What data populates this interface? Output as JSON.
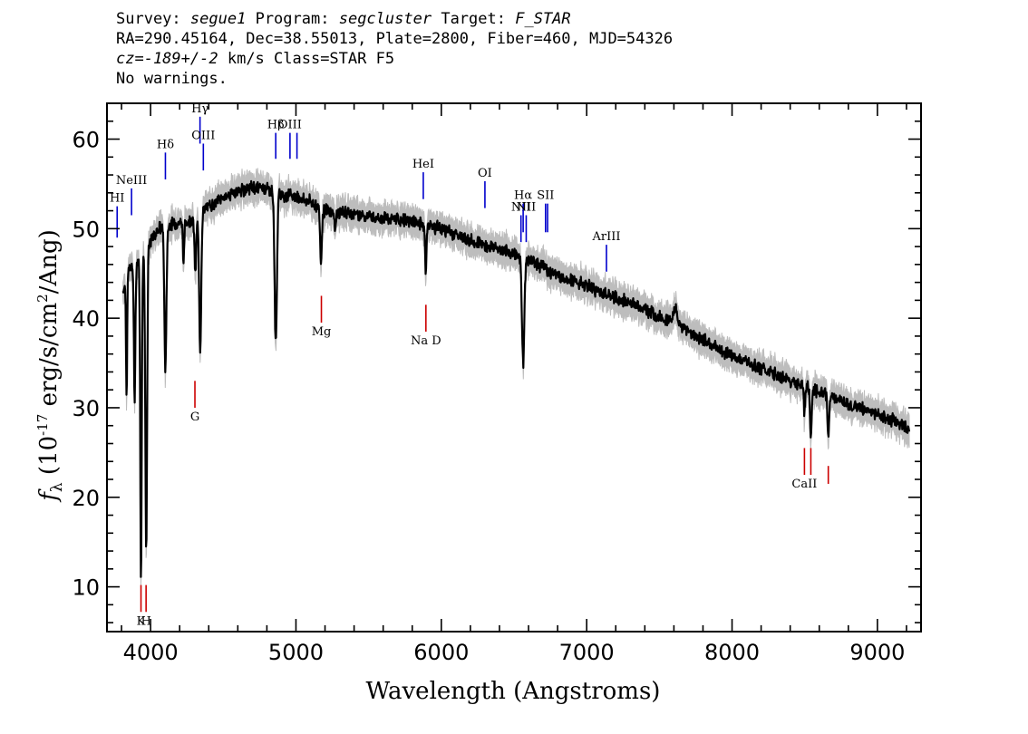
{
  "header": {
    "survey_label": "Survey:",
    "survey": "segue1",
    "program_label": "Program:",
    "program": "segcluster",
    "target_label": "Target:",
    "target": "F_STAR",
    "line2": "RA=290.45164, Dec=38.55013, Plate=2800, Fiber=460, MJD=54326",
    "cz": "cz=-189+/-2",
    "line3_rest": "km/s Class=STAR F5",
    "line4": "No warnings."
  },
  "chart_data": {
    "type": "line",
    "xlabel": "Wavelength (Angstroms)",
    "ylabel": "f_λ (10^-17 erg/s/cm^2/Ang)",
    "xlim": [
      3700,
      9300
    ],
    "ylim": [
      5,
      64
    ],
    "x_ticks": [
      4000,
      5000,
      6000,
      7000,
      8000,
      9000
    ],
    "y_ticks": [
      10,
      20,
      30,
      40,
      50,
      60
    ],
    "grid": false,
    "colors": {
      "flux": "#000000",
      "error": "#bdbdbd",
      "emission": "#0000cc",
      "absorption": "#cc0000"
    },
    "continuum": [
      [
        3810,
        43
      ],
      [
        3850,
        45.5
      ],
      [
        3900,
        46
      ],
      [
        3950,
        47
      ],
      [
        4000,
        48.5
      ],
      [
        4050,
        50
      ],
      [
        4150,
        50.5
      ],
      [
        4300,
        51
      ],
      [
        4400,
        52.5
      ],
      [
        4500,
        53.5
      ],
      [
        4600,
        54.2
      ],
      [
        4700,
        54.6
      ],
      [
        4800,
        54.5
      ],
      [
        4900,
        53.8
      ],
      [
        5000,
        53.6
      ],
      [
        5100,
        53
      ],
      [
        5200,
        52
      ],
      [
        5400,
        51.7
      ],
      [
        5600,
        51.2
      ],
      [
        5800,
        50.8
      ],
      [
        6000,
        50
      ],
      [
        6200,
        48.7
      ],
      [
        6400,
        47.7
      ],
      [
        6600,
        46.6
      ],
      [
        6800,
        44.8
      ],
      [
        7000,
        43.6
      ],
      [
        7200,
        42.3
      ],
      [
        7400,
        41
      ],
      [
        7600,
        39.5
      ],
      [
        7800,
        37.6
      ],
      [
        8000,
        35.8
      ],
      [
        8200,
        34.4
      ],
      [
        8400,
        33
      ],
      [
        8600,
        31.8
      ],
      [
        8800,
        30.4
      ],
      [
        9000,
        29.3
      ],
      [
        9100,
        28.6
      ],
      [
        9220,
        27.6
      ]
    ],
    "absorption_features": [
      {
        "x": 3835,
        "depth": 13,
        "width": 4
      },
      {
        "x": 3890,
        "depth": 15,
        "width": 5
      },
      {
        "x": 3934,
        "depth": 36,
        "width": 5
      },
      {
        "x": 3970,
        "depth": 34,
        "width": 6
      },
      {
        "x": 4102,
        "depth": 16,
        "width": 7
      },
      {
        "x": 4227,
        "depth": 5,
        "width": 4
      },
      {
        "x": 4308,
        "depth": 6,
        "width": 6
      },
      {
        "x": 4341,
        "depth": 15,
        "width": 7
      },
      {
        "x": 4861,
        "depth": 17,
        "width": 8
      },
      {
        "x": 5172,
        "depth": 6,
        "width": 6
      },
      {
        "x": 5270,
        "depth": 2,
        "width": 5
      },
      {
        "x": 5893,
        "depth": 5,
        "width": 5
      },
      {
        "x": 6563,
        "depth": 12,
        "width": 8
      },
      {
        "x": 8498,
        "depth": 3,
        "width": 5
      },
      {
        "x": 8542,
        "depth": 5.5,
        "width": 5
      },
      {
        "x": 8662,
        "depth": 5,
        "width": 5
      }
    ],
    "emission_features": [
      {
        "x": 7610,
        "height": 1.8,
        "width": 12
      }
    ],
    "emission_lines": [
      {
        "label": "HI",
        "x": 3770,
        "y_top": 52.5,
        "y_bot": 49
      },
      {
        "label": "NeIII",
        "x": 3869,
        "y_top": 54.5,
        "y_bot": 51.5
      },
      {
        "label": "Hδ",
        "x": 4102,
        "y_top": 58.5,
        "y_bot": 55.5
      },
      {
        "label": "Hγ",
        "x": 4340,
        "y_top": 62.5,
        "y_bot": 59.5
      },
      {
        "label": "OIII",
        "x": 4363,
        "y_top": 59.5,
        "y_bot": 56.5
      },
      {
        "label": "Hβ",
        "x": 4861,
        "y_top": 60.7,
        "y_bot": 57.8
      },
      {
        "label": "OIII",
        "x": 4959,
        "y_top": 60.7,
        "y_bot": 57.8
      },
      {
        "label": "",
        "x": 5007,
        "y_top": 60.7,
        "y_bot": 57.8
      },
      {
        "label": "HeI",
        "x": 5876,
        "y_top": 56.3,
        "y_bot": 53.3
      },
      {
        "label": "OI",
        "x": 6300,
        "y_top": 55.3,
        "y_bot": 52.3
      },
      {
        "label": "NII",
        "x": 6548,
        "y_top": 51.5,
        "y_bot": 48.5
      },
      {
        "label": "Hα",
        "x": 6563,
        "y_top": 52.8,
        "y_bot": 49.6
      },
      {
        "label": "NII",
        "x": 6584,
        "y_top": 51.5,
        "y_bot": 48.5
      },
      {
        "label": "SII",
        "x": 6717,
        "y_top": 52.8,
        "y_bot": 49.6
      },
      {
        "label": "",
        "x": 6731,
        "y_top": 52.8,
        "y_bot": 49.6
      },
      {
        "label": "ArIII",
        "x": 7136,
        "y_top": 48.2,
        "y_bot": 45.2
      }
    ],
    "absorption_lines": [
      {
        "label": "K",
        "x": 3934,
        "y_top": 10.2,
        "y_bot": 7.2
      },
      {
        "label": "H",
        "x": 3969,
        "y_top": 10.2,
        "y_bot": 7.2
      },
      {
        "label": "G",
        "x": 4305,
        "y_top": 33,
        "y_bot": 30
      },
      {
        "label": "Mg",
        "x": 5175,
        "y_top": 42.5,
        "y_bot": 39.5
      },
      {
        "label": "Na D",
        "x": 5894,
        "y_top": 41.5,
        "y_bot": 38.5
      },
      {
        "label": "CaII",
        "x": 8498,
        "y_top": 25.5,
        "y_bot": 22.5
      },
      {
        "label": "",
        "x": 8542,
        "y_top": 25.5,
        "y_bot": 22.5
      },
      {
        "label": "",
        "x": 8662,
        "y_top": 23.5,
        "y_bot": 21.5
      }
    ]
  }
}
